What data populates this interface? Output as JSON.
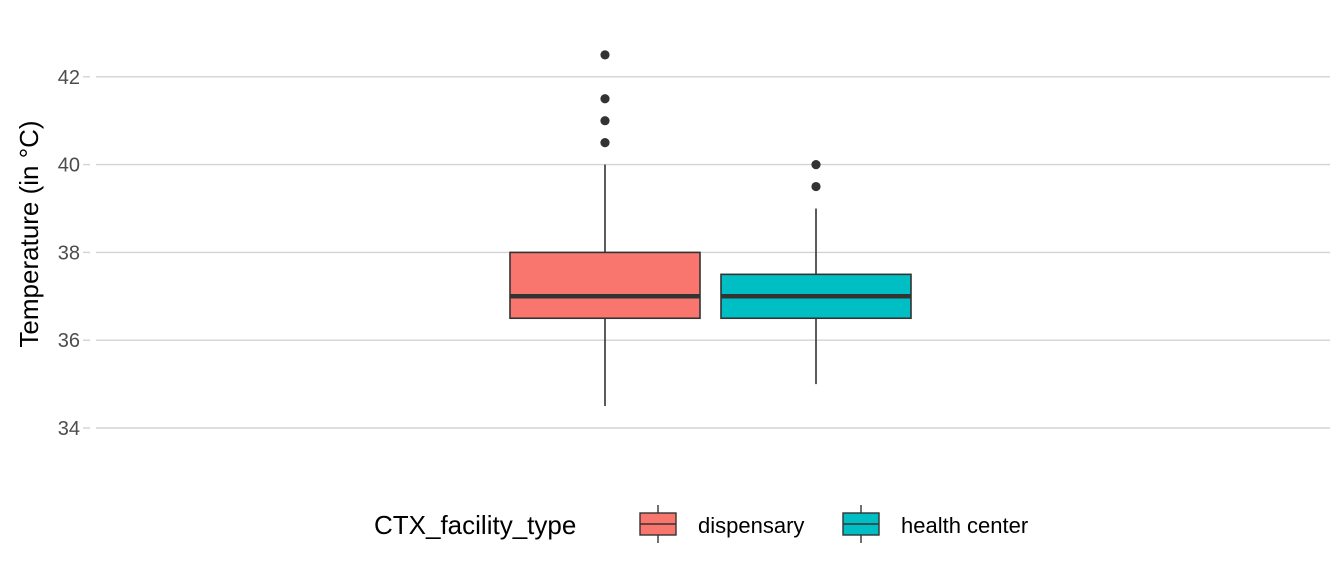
{
  "chart_data": {
    "type": "boxplot",
    "ylabel": "Temperature (in °C)",
    "xlabel": "",
    "ylim": [
      33.6,
      43.1
    ],
    "yticks": [
      34,
      36,
      38,
      40,
      42
    ],
    "grid": "horizontal major",
    "legend": {
      "title": "CTX_facility_type",
      "position": "bottom"
    },
    "series": [
      {
        "name": "dispensary",
        "color": "#F8766D",
        "whisker_low": 34.5,
        "q1": 36.5,
        "median": 37.0,
        "q3": 38.0,
        "whisker_high": 40.0,
        "outliers": [
          40.5,
          41.0,
          41.5,
          42.5
        ]
      },
      {
        "name": "health center",
        "color": "#00BFC4",
        "whisker_low": 35.0,
        "q1": 36.5,
        "median": 37.0,
        "q3": 37.5,
        "whisker_high": 39.0,
        "outliers": [
          39.5,
          40.0
        ]
      }
    ]
  }
}
